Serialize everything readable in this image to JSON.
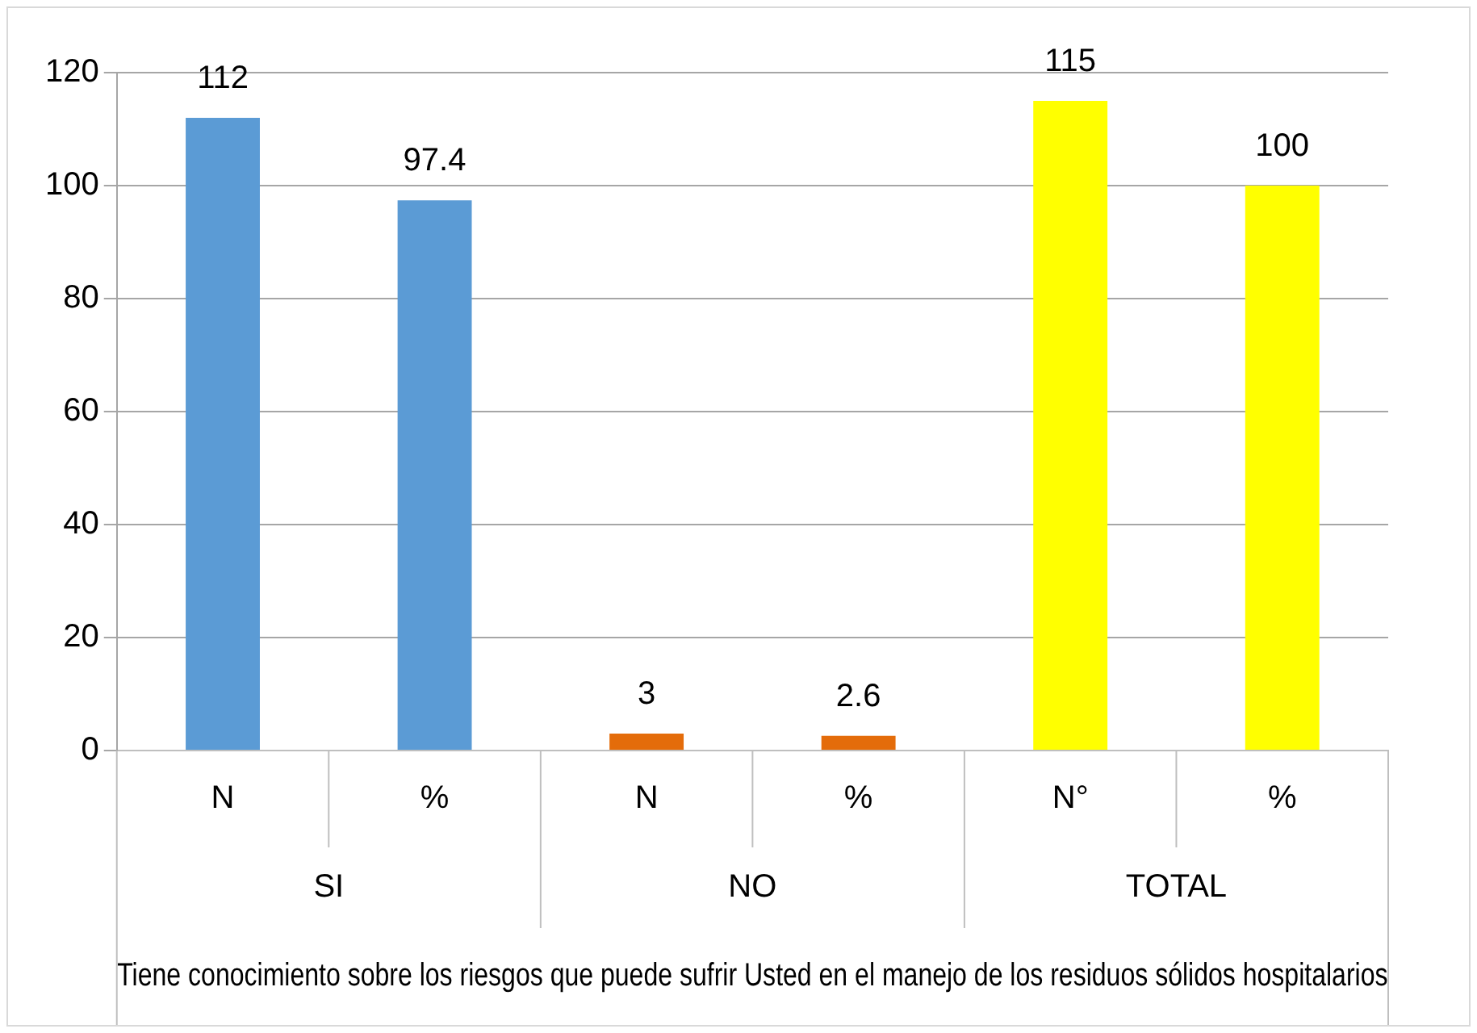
{
  "chart_data": {
    "type": "bar",
    "categories": [
      "N",
      "%",
      "N",
      "%",
      "N°",
      "%"
    ],
    "values": [
      112,
      97.4,
      3,
      2.6,
      115,
      100
    ],
    "colors": [
      "#5b9bd5",
      "#5b9bd5",
      "#e46c0a",
      "#e46c0a",
      "#ffff00",
      "#ffff00"
    ],
    "ylim": [
      0,
      120
    ],
    "yticks": [
      0,
      20,
      40,
      60,
      80,
      100,
      120
    ],
    "grid": "y",
    "legend": false,
    "data_labels": true,
    "xlabel": "Tiene conocimiento sobre los riesgos que puede sufrir Usted en el manejo de los residuos sólidos hospitalarios",
    "annotations": [
      "SI",
      "NO",
      "TOTAL"
    ]
  }
}
